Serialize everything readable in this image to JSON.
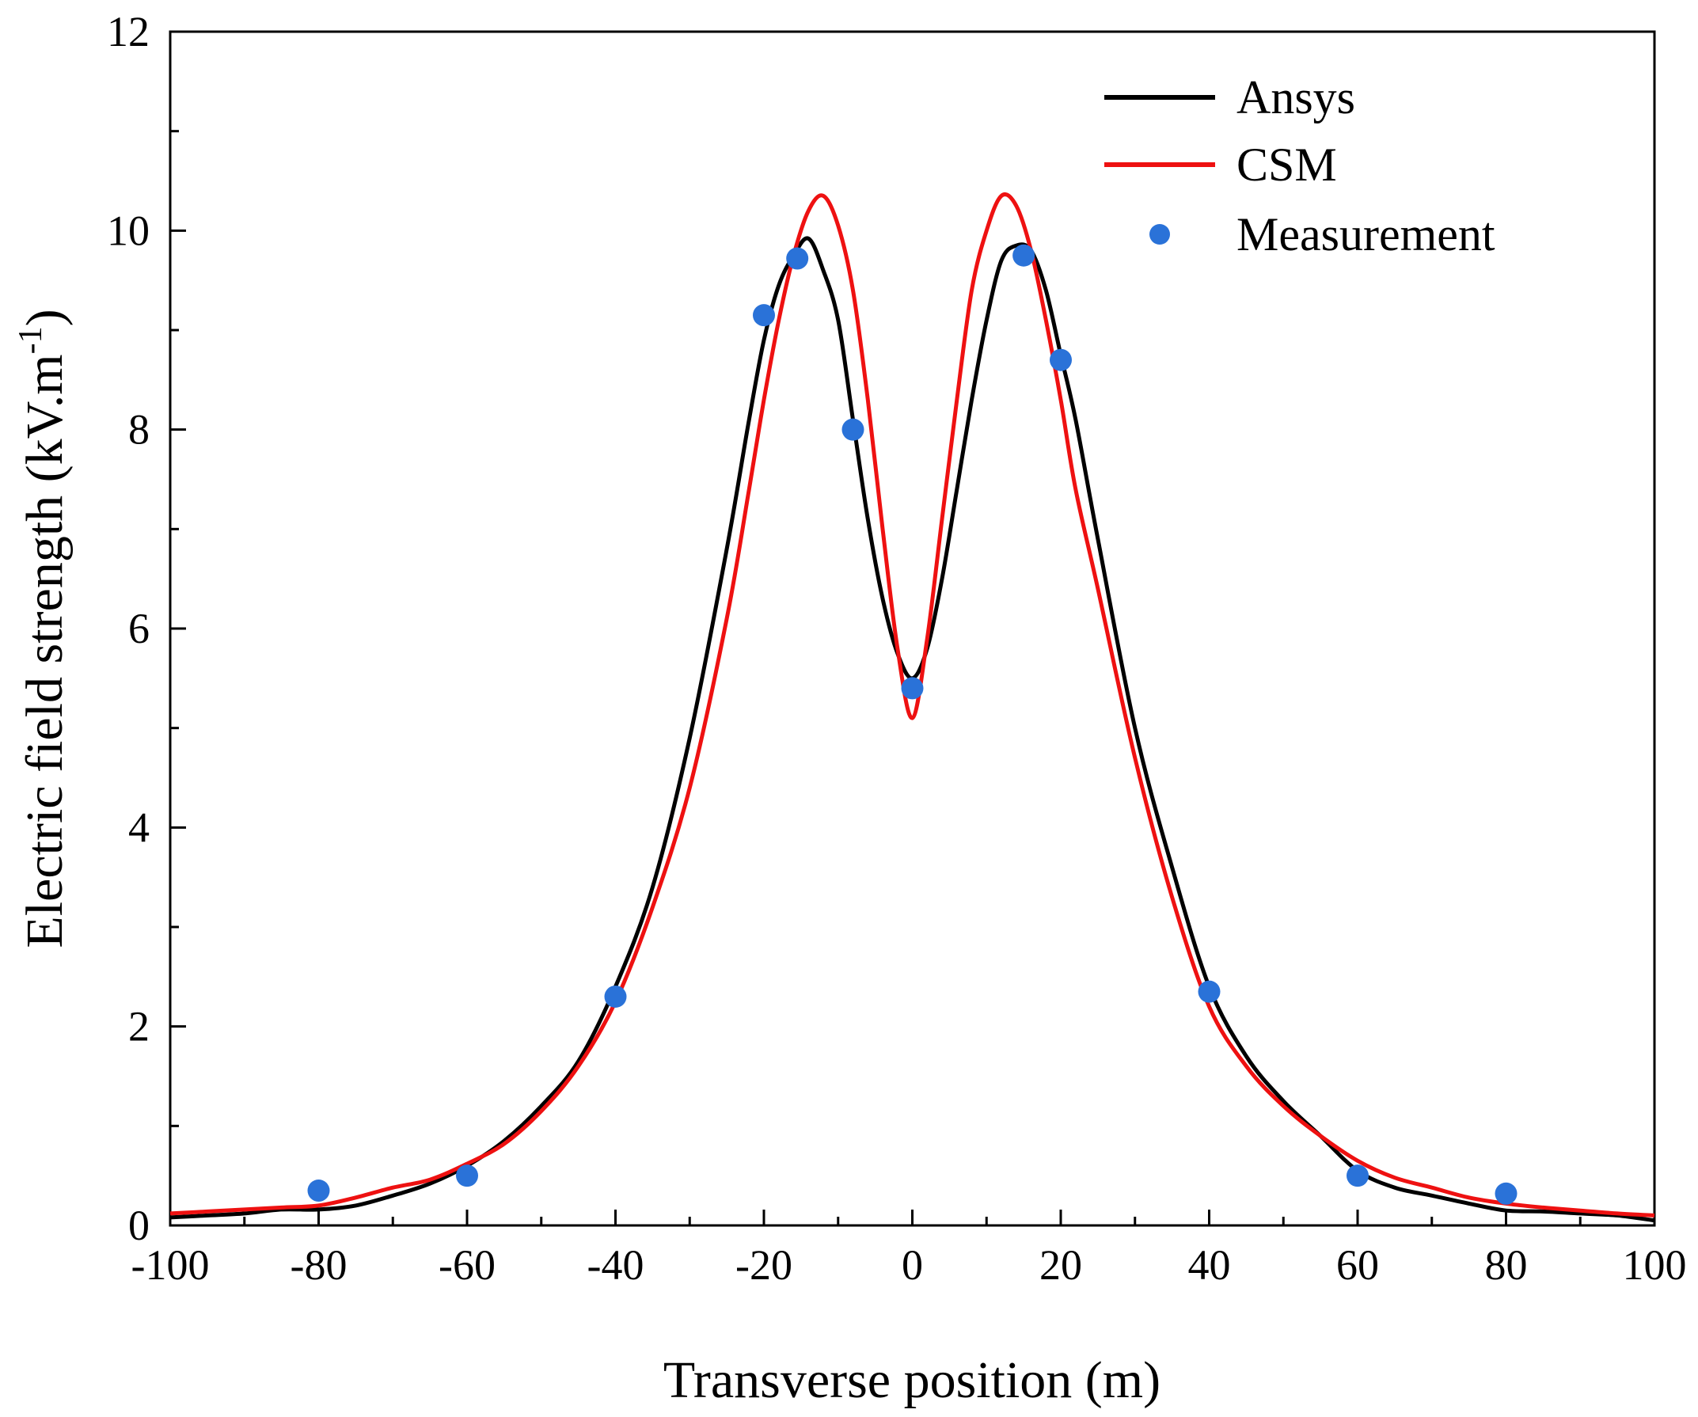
{
  "chart_data": {
    "type": "line",
    "title": "",
    "xlabel": "Transverse position (m)",
    "ylabel_main": "Electric field strength (kV.m",
    "ylabel_sup": "-1",
    "ylabel_close": ")",
    "xlim": [
      -100,
      100
    ],
    "ylim": [
      0,
      12
    ],
    "xticks": [
      -100,
      -80,
      -60,
      -40,
      -20,
      0,
      20,
      40,
      60,
      80,
      100
    ],
    "yticks": [
      0,
      2,
      4,
      6,
      8,
      10,
      12
    ],
    "grid": false,
    "legend_position": "top-right",
    "series": [
      {
        "name": "Ansys",
        "kind": "line",
        "color": "#000000",
        "points": [
          [
            -100,
            0.08
          ],
          [
            -95,
            0.1
          ],
          [
            -90,
            0.12
          ],
          [
            -85,
            0.16
          ],
          [
            -80,
            0.16
          ],
          [
            -75,
            0.2
          ],
          [
            -70,
            0.3
          ],
          [
            -65,
            0.42
          ],
          [
            -60,
            0.6
          ],
          [
            -55,
            0.85
          ],
          [
            -50,
            1.2
          ],
          [
            -45,
            1.65
          ],
          [
            -40,
            2.4
          ],
          [
            -35,
            3.4
          ],
          [
            -30,
            4.9
          ],
          [
            -25,
            6.8
          ],
          [
            -22,
            8.1
          ],
          [
            -20,
            8.9
          ],
          [
            -18,
            9.45
          ],
          [
            -16,
            9.75
          ],
          [
            -14,
            9.92
          ],
          [
            -12,
            9.6
          ],
          [
            -10,
            9.1
          ],
          [
            -8,
            8.1
          ],
          [
            -6,
            7.1
          ],
          [
            -4,
            6.3
          ],
          [
            -2,
            5.75
          ],
          [
            0,
            5.5
          ],
          [
            2,
            5.8
          ],
          [
            4,
            6.5
          ],
          [
            6,
            7.4
          ],
          [
            8,
            8.3
          ],
          [
            10,
            9.1
          ],
          [
            12,
            9.7
          ],
          [
            14,
            9.85
          ],
          [
            16,
            9.8
          ],
          [
            18,
            9.4
          ],
          [
            20,
            8.75
          ],
          [
            22,
            8.1
          ],
          [
            25,
            6.9
          ],
          [
            30,
            5.0
          ],
          [
            35,
            3.6
          ],
          [
            40,
            2.4
          ],
          [
            45,
            1.7
          ],
          [
            50,
            1.25
          ],
          [
            55,
            0.9
          ],
          [
            60,
            0.55
          ],
          [
            65,
            0.38
          ],
          [
            70,
            0.3
          ],
          [
            75,
            0.22
          ],
          [
            80,
            0.15
          ],
          [
            85,
            0.14
          ],
          [
            90,
            0.12
          ],
          [
            95,
            0.1
          ],
          [
            100,
            0.05
          ]
        ]
      },
      {
        "name": "CSM",
        "kind": "line",
        "color": "#ee1111",
        "points": [
          [
            -100,
            0.12
          ],
          [
            -95,
            0.14
          ],
          [
            -90,
            0.16
          ],
          [
            -85,
            0.18
          ],
          [
            -80,
            0.2
          ],
          [
            -75,
            0.28
          ],
          [
            -70,
            0.38
          ],
          [
            -65,
            0.46
          ],
          [
            -60,
            0.62
          ],
          [
            -55,
            0.82
          ],
          [
            -50,
            1.15
          ],
          [
            -45,
            1.6
          ],
          [
            -40,
            2.25
          ],
          [
            -35,
            3.2
          ],
          [
            -30,
            4.4
          ],
          [
            -25,
            6.1
          ],
          [
            -22,
            7.4
          ],
          [
            -20,
            8.3
          ],
          [
            -18,
            9.1
          ],
          [
            -16,
            9.75
          ],
          [
            -14,
            10.2
          ],
          [
            -12,
            10.35
          ],
          [
            -10,
            10.05
          ],
          [
            -8,
            9.4
          ],
          [
            -6,
            8.3
          ],
          [
            -4,
            7.0
          ],
          [
            -2,
            5.8
          ],
          [
            0,
            5.1
          ],
          [
            2,
            5.9
          ],
          [
            4,
            7.1
          ],
          [
            6,
            8.3
          ],
          [
            8,
            9.4
          ],
          [
            10,
            10.0
          ],
          [
            12,
            10.35
          ],
          [
            14,
            10.25
          ],
          [
            16,
            9.8
          ],
          [
            18,
            9.1
          ],
          [
            20,
            8.3
          ],
          [
            22,
            7.4
          ],
          [
            25,
            6.4
          ],
          [
            30,
            4.7
          ],
          [
            35,
            3.3
          ],
          [
            40,
            2.2
          ],
          [
            45,
            1.6
          ],
          [
            50,
            1.2
          ],
          [
            55,
            0.9
          ],
          [
            60,
            0.65
          ],
          [
            65,
            0.48
          ],
          [
            70,
            0.38
          ],
          [
            75,
            0.28
          ],
          [
            80,
            0.22
          ],
          [
            85,
            0.18
          ],
          [
            90,
            0.15
          ],
          [
            95,
            0.12
          ],
          [
            100,
            0.1
          ]
        ]
      },
      {
        "name": "Measurement",
        "kind": "scatter",
        "color": "#2a72d8",
        "points": [
          [
            -80,
            0.35
          ],
          [
            -60,
            0.5
          ],
          [
            -40,
            2.3
          ],
          [
            -20,
            9.15
          ],
          [
            -15.5,
            9.72
          ],
          [
            -8,
            8.0
          ],
          [
            0,
            5.4
          ],
          [
            15,
            9.75
          ],
          [
            20,
            8.7
          ],
          [
            40,
            2.35
          ],
          [
            60,
            0.5
          ],
          [
            80,
            0.32
          ]
        ]
      }
    ]
  }
}
